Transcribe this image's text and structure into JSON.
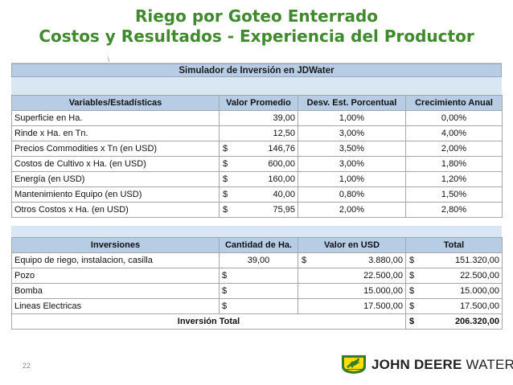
{
  "slide": {
    "title_line1": "Riego por Goteo Enterrado",
    "title_line2": "Costos y Resultados -  Experiencia del Productor",
    "page_number": "22"
  },
  "sheet": {
    "top_strip_text": "\\",
    "banner": "Simulador de Inversión en JDWater"
  },
  "variables_table": {
    "headers": [
      "Variables/Estadísticas",
      "Valor Promedio",
      "Desv. Est. Porcentual",
      "Crecimiento Anual"
    ],
    "rows": [
      {
        "label": "Superficie en Ha.",
        "currency": "",
        "value": "39,00",
        "desv": "1,00%",
        "crec": "0,00%"
      },
      {
        "label": "Rinde x Ha. en Tn.",
        "currency": "",
        "value": "12,50",
        "desv": "3,00%",
        "crec": "4,00%"
      },
      {
        "label": "Precios Commodities x Tn (en USD)",
        "currency": "$",
        "value": "146,76",
        "desv": "3,50%",
        "crec": "2,00%"
      },
      {
        "label": "Costos de Cultivo x Ha. (en USD)",
        "currency": "$",
        "value": "600,00",
        "desv": "3,00%",
        "crec": "1,80%"
      },
      {
        "label": "Energía (en USD)",
        "currency": "$",
        "value": "160,00",
        "desv": "1,00%",
        "crec": "1,20%"
      },
      {
        "label": "Mantenimiento Equipo (en USD)",
        "currency": "$",
        "value": "40,00",
        "desv": "0,80%",
        "crec": "1,50%"
      },
      {
        "label": "Otros Costos x Ha. (en USD)",
        "currency": "$",
        "value": "75,95",
        "desv": "2,00%",
        "crec": "2,80%"
      }
    ]
  },
  "investments_table": {
    "headers": [
      "Inversiones",
      "Cantidad de Ha.",
      "Valor en USD",
      "Total"
    ],
    "rows": [
      {
        "label": "Equipo de riego, instalacion, casilla",
        "qty": "39,00",
        "val_cur": "$",
        "valor": "3.880,00",
        "tot_cur": "$",
        "total": "151.320,00"
      },
      {
        "label": "Pozo",
        "qty": "$",
        "val_cur": "",
        "valor": "22.500,00",
        "tot_cur": "$",
        "total": "22.500,00"
      },
      {
        "label": "Bomba",
        "qty": "$",
        "val_cur": "",
        "valor": "15.000,00",
        "tot_cur": "$",
        "total": "15.000,00"
      },
      {
        "label": "Lineas Electricas",
        "qty": "$",
        "val_cur": "",
        "valor": "17.500,00",
        "tot_cur": "$",
        "total": "17.500,00"
      }
    ],
    "total_label": "Inversión Total",
    "total_currency": "$",
    "total_value": "206.320,00"
  },
  "logo": {
    "brand": "JOHN DEERE",
    "suffix": "WATER",
    "icon": "deer-logo-icon",
    "colors": {
      "green": "#367c2b",
      "yellow": "#ffde00"
    }
  },
  "colors": {
    "title_green": "#3f8a2c",
    "header_blue": "#b7cde6",
    "spacer_blue": "#d9e6f3"
  }
}
